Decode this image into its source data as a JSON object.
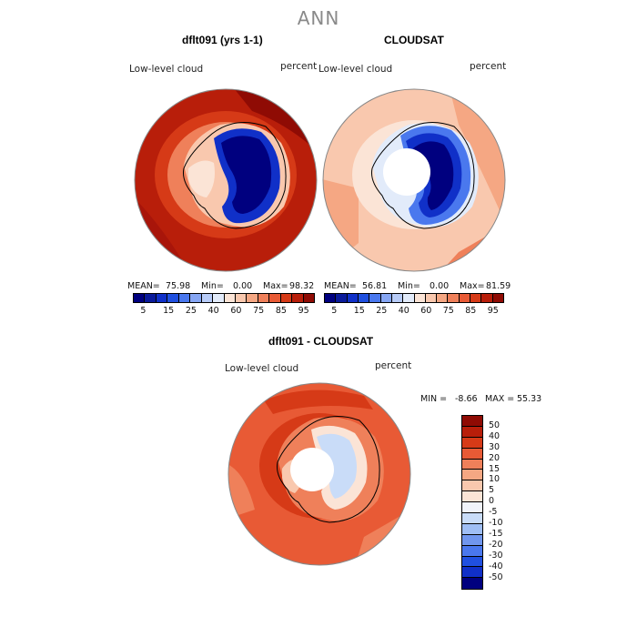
{
  "title": "ANN",
  "panels": {
    "model": {
      "title": "dflt091 (yrs 1-1)",
      "variable": "Low-level cloud",
      "units": "percent",
      "mean_label": "MEAN=",
      "mean": "75.98",
      "min_label": "Min=",
      "min": "0.00",
      "max_label": "Max=",
      "max": "98.32"
    },
    "obs": {
      "title": "CLOUDSAT",
      "variable": "Low-level cloud",
      "units": "percent",
      "mean_label": "MEAN=",
      "mean": "56.81",
      "min_label": "Min=",
      "min": "0.00",
      "max_label": "Max=",
      "max": "81.59"
    },
    "diff": {
      "title": "dflt091 - CLOUDSAT",
      "variable": "Low-level cloud",
      "units": "percent",
      "min_label": "MIN =",
      "min": "-8.66",
      "max_label": "MAX =",
      "max": "55.33"
    }
  },
  "colorbar_abs": {
    "ticks": [
      "5",
      "15",
      "25",
      "40",
      "60",
      "75",
      "85",
      "95"
    ],
    "colors": [
      "#00007f",
      "#0a1a9a",
      "#1030c8",
      "#2050e0",
      "#4a78ee",
      "#86a6f4",
      "#b8ccf8",
      "#e2ebfa",
      "#fbe4d6",
      "#f9c8ae",
      "#f5a783",
      "#ef805a",
      "#e85a35",
      "#d63a17",
      "#b81e0a",
      "#8f0b04"
    ]
  },
  "colorbar_diff": {
    "labels": [
      "50",
      "40",
      "30",
      "20",
      "15",
      "10",
      "5",
      "0",
      "-5",
      "-10",
      "-15",
      "-20",
      "-30",
      "-40",
      "-50"
    ],
    "colors": [
      "#8f0b04",
      "#b81e0a",
      "#d63a17",
      "#e85a35",
      "#ef805a",
      "#f5a783",
      "#f9c8ae",
      "#fbe4d6",
      "#f0f3fa",
      "#c9dcf8",
      "#9fbef4",
      "#7096ee",
      "#4a78ee",
      "#2050e0",
      "#1030c8",
      "#00007f"
    ]
  }
}
